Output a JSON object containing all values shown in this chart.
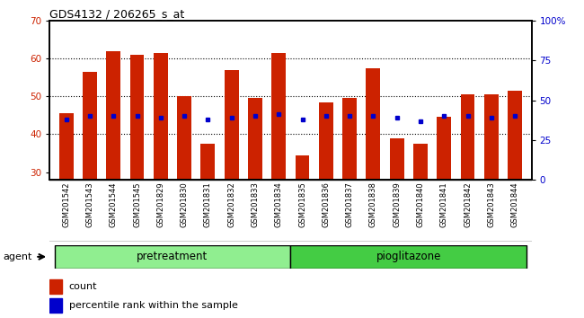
{
  "title": "GDS4132 / 206265_s_at",
  "samples": [
    "GSM201542",
    "GSM201543",
    "GSM201544",
    "GSM201545",
    "GSM201829",
    "GSM201830",
    "GSM201831",
    "GSM201832",
    "GSM201833",
    "GSM201834",
    "GSM201835",
    "GSM201836",
    "GSM201837",
    "GSM201838",
    "GSM201839",
    "GSM201840",
    "GSM201841",
    "GSM201842",
    "GSM201843",
    "GSM201844"
  ],
  "counts": [
    45.5,
    56.5,
    62.0,
    61.0,
    61.5,
    50.0,
    37.5,
    57.0,
    49.5,
    61.5,
    34.5,
    48.5,
    49.5,
    57.5,
    39.0,
    37.5,
    44.5,
    50.5,
    50.5,
    51.5
  ],
  "percentile": [
    38,
    40,
    40,
    40,
    39,
    40,
    38,
    39,
    40,
    41,
    38,
    40,
    40,
    40,
    39,
    37,
    40,
    40,
    39,
    40
  ],
  "groups": [
    {
      "label": "pretreatment",
      "start": 0,
      "end": 10,
      "color": "#90ee90"
    },
    {
      "label": "pioglitazone",
      "start": 10,
      "end": 20,
      "color": "#44cc44"
    }
  ],
  "ylim": [
    28,
    70
  ],
  "y_left_ticks": [
    30,
    40,
    50,
    60,
    70
  ],
  "y_right_ticks": [
    0,
    25,
    50,
    75,
    100
  ],
  "bar_color": "#cc2200",
  "dot_color": "#0000cc",
  "background_color": "#c0c0c0",
  "plot_bg_color": "#ffffff",
  "legend_count_label": "count",
  "legend_pct_label": "percentile rank within the sample",
  "agent_label": "agent",
  "grid_yticks": [
    40,
    50,
    60
  ],
  "bar_width": 0.6
}
